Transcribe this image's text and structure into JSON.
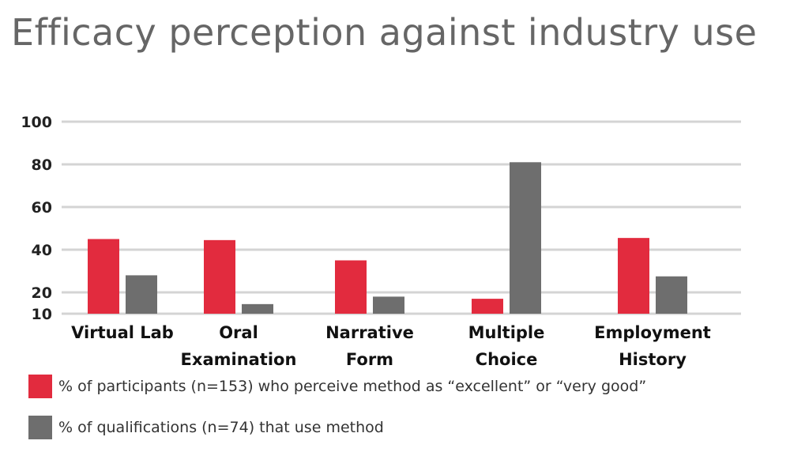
{
  "chart_data": {
    "type": "bar",
    "title": "Efficacy perception against industry use",
    "categories": [
      "Virtual Lab",
      "Oral Examination",
      "Narrative Form",
      "Multiple Choice",
      "Employment History"
    ],
    "category_lines": [
      [
        "Virtual Lab"
      ],
      [
        "Oral",
        "Examination"
      ],
      [
        "Narrative",
        "Form"
      ],
      [
        "Multiple",
        "Choice"
      ],
      [
        "Employment",
        "History"
      ]
    ],
    "series": [
      {
        "name": "% of participants (n=153) who perceive method as “excellent” or “very good”",
        "color": "#E22B3E",
        "values": [
          45,
          44.5,
          35,
          17,
          45.5
        ]
      },
      {
        "name": "% of qualifications (n=74) that use method",
        "color": "#6E6E6E",
        "values": [
          28,
          14.5,
          18,
          81,
          27.5
        ]
      }
    ],
    "y_ticks": [
      10,
      20,
      40,
      60,
      80,
      100
    ],
    "ylim": [
      10,
      100
    ],
    "grid": true,
    "legend_position": "bottom-left",
    "xlabel": "",
    "ylabel": ""
  }
}
